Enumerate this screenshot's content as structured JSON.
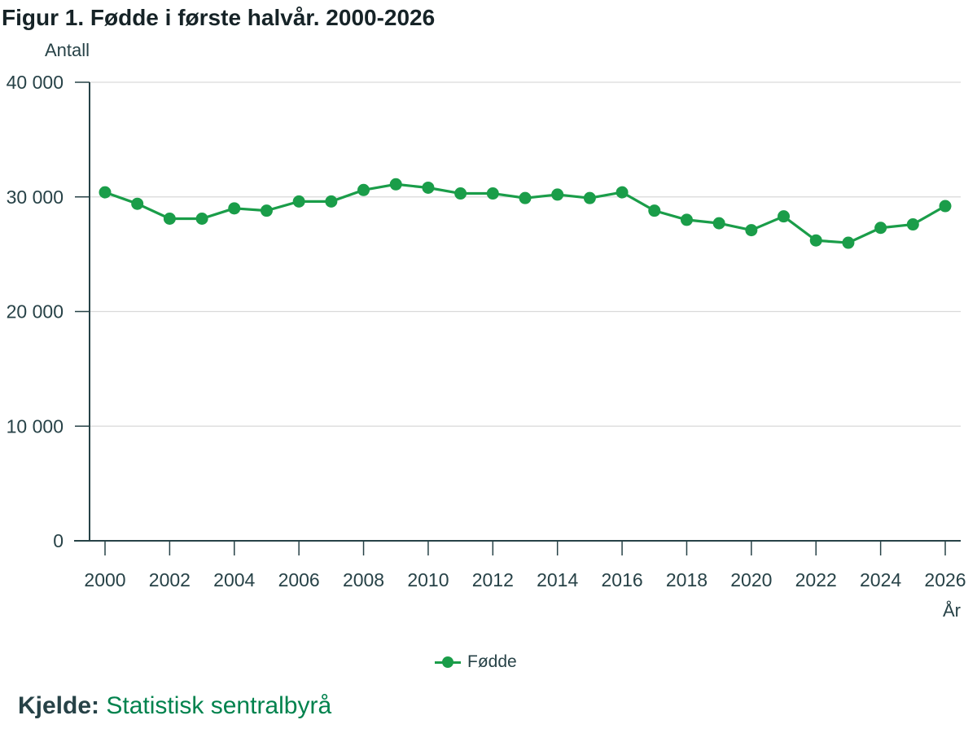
{
  "title": "Figur 1. Fødde i første halvår. 2000-2026",
  "source": {
    "label": "Kjelde:",
    "value": "Statistisk sentralbyrå"
  },
  "colors": {
    "series": "#1a9d49",
    "axis": "#274247",
    "grid": "#d9d9d9",
    "source_link": "#00824d"
  },
  "chart_data": {
    "type": "line",
    "title": "Figur 1. Fødde i første halvår. 2000-2026",
    "ylabel": "Antall",
    "xlabel": "År",
    "ylim": [
      0,
      40000
    ],
    "xlim": [
      2000,
      2026
    ],
    "yticks": [
      0,
      10000,
      20000,
      30000,
      40000
    ],
    "ytick_labels": [
      "0",
      "10 000",
      "20 000",
      "30 000",
      "40 000"
    ],
    "xticks": [
      2000,
      2002,
      2004,
      2006,
      2008,
      2010,
      2012,
      2014,
      2016,
      2018,
      2020,
      2022,
      2024,
      2026
    ],
    "xtick_labels": [
      "2000",
      "2002",
      "2004",
      "2006",
      "2008",
      "2010",
      "2012",
      "2014",
      "2016",
      "2018",
      "2020",
      "2022",
      "2024",
      "2026"
    ],
    "grid": true,
    "legend_position": "bottom-center",
    "x": [
      2000,
      2001,
      2002,
      2003,
      2004,
      2005,
      2006,
      2007,
      2008,
      2009,
      2010,
      2011,
      2012,
      2013,
      2014,
      2015,
      2016,
      2017,
      2018,
      2019,
      2020,
      2021,
      2022,
      2023,
      2024,
      2025,
      2026
    ],
    "series": [
      {
        "name": "Fødde",
        "values": [
          30400,
          29400,
          28100,
          28100,
          29000,
          28800,
          29600,
          29600,
          30600,
          31100,
          30800,
          30300,
          30300,
          29900,
          30200,
          29900,
          30400,
          28800,
          28000,
          27700,
          27100,
          28300,
          26200,
          26000,
          27300,
          27600,
          29200
        ]
      }
    ]
  }
}
